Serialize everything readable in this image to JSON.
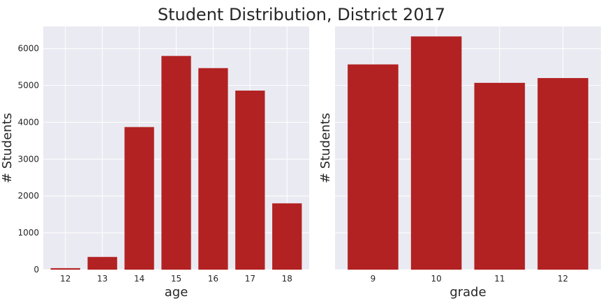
{
  "title": "Student Distribution, District 2017",
  "colors": {
    "bar": "#b22222",
    "panel_bg": "#eaeaf2",
    "grid": "#ffffff"
  },
  "chart_data": [
    {
      "type": "bar",
      "categories": [
        "12",
        "13",
        "14",
        "15",
        "16",
        "17",
        "18"
      ],
      "values": [
        40,
        345,
        3870,
        5800,
        5470,
        4860,
        1800
      ],
      "xlabel": "age",
      "ylabel": "# Students",
      "ylim": [
        0,
        6600
      ],
      "yticks": [
        0,
        1000,
        2000,
        3000,
        4000,
        5000,
        6000
      ],
      "grid": true
    },
    {
      "type": "bar",
      "categories": [
        "9",
        "10",
        "11",
        "12"
      ],
      "values": [
        5570,
        6330,
        5070,
        5200
      ],
      "xlabel": "grade",
      "ylabel": "# Students",
      "ylim": [
        0,
        6600
      ],
      "yticks": [
        0,
        1000,
        2000,
        3000,
        4000,
        5000,
        6000
      ],
      "grid": true
    }
  ]
}
